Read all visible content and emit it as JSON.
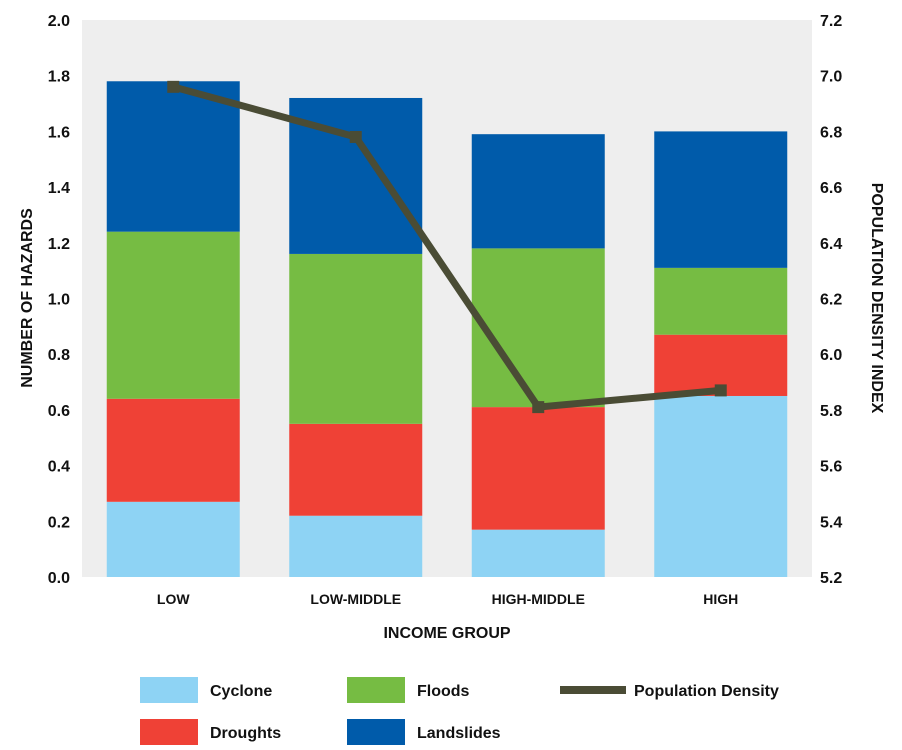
{
  "chart_data": {
    "type": "bar",
    "stacked": true,
    "categories": [
      "LOW",
      "LOW-MIDDLE",
      "HIGH-MIDDLE",
      "HIGH"
    ],
    "series": [
      {
        "name": "Cyclone",
        "values": [
          0.27,
          0.22,
          0.17,
          0.65
        ],
        "color": "#8ed3f4"
      },
      {
        "name": "Droughts",
        "values": [
          0.37,
          0.33,
          0.44,
          0.22
        ],
        "color": "#ef4136"
      },
      {
        "name": "Floods",
        "values": [
          0.6,
          0.61,
          0.57,
          0.24
        ],
        "color": "#76bc43"
      },
      {
        "name": "Landslides",
        "values": [
          0.54,
          0.56,
          0.41,
          0.49
        ],
        "color": "#005baa"
      }
    ],
    "line_series": {
      "name": "Population Density",
      "axis": "right",
      "values": [
        6.96,
        6.78,
        5.81,
        5.87
      ],
      "color": "#4a4c35"
    },
    "xlabel": "INCOME GROUP",
    "ylabel": "NUMBER OF HAZARDS",
    "y2label": "POPULATION DENSITY INDEX",
    "ylim": [
      0,
      2.0
    ],
    "y2lim": [
      5.2,
      7.2
    ],
    "yticks": [
      "0.0",
      "0.2",
      "0.4",
      "0.6",
      "0.8",
      "1.0",
      "1.2",
      "1.4",
      "1.6",
      "1.8",
      "2.0"
    ],
    "y2ticks": [
      "5.2",
      "5.4",
      "5.6",
      "5.8",
      "6.0",
      "6.2",
      "6.4",
      "6.6",
      "6.8",
      "7.0",
      "7.2"
    ],
    "plot_background": "#eeeeee",
    "grid": false,
    "legend_position": "bottom"
  }
}
